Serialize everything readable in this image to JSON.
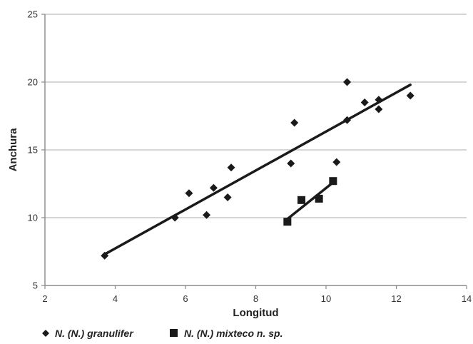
{
  "chart_data": {
    "type": "scatter",
    "xlabel": "Longitud",
    "ylabel": "Anchura",
    "xlim": [
      2,
      14
    ],
    "ylim": [
      5,
      25
    ],
    "xticks": [
      2,
      4,
      6,
      8,
      10,
      12,
      14
    ],
    "yticks": [
      5,
      10,
      15,
      20,
      25
    ],
    "grid": "horizontal",
    "legend_position": "bottom",
    "series": [
      {
        "name": "N. (N.) granulifer",
        "marker": "diamond",
        "color": "#1a1a1a",
        "x": [
          3.7,
          5.7,
          6.1,
          6.6,
          6.8,
          7.2,
          7.3,
          9.0,
          9.1,
          10.3,
          10.6,
          10.6,
          11.1,
          11.5,
          11.5,
          12.4
        ],
        "y": [
          7.2,
          10.0,
          11.8,
          10.2,
          12.2,
          11.5,
          13.7,
          14.0,
          17.0,
          14.1,
          20.0,
          17.2,
          18.5,
          18.0,
          18.7,
          19.0
        ],
        "trendline": {
          "x": [
            3.7,
            12.4
          ],
          "y": [
            7.3,
            19.8
          ]
        }
      },
      {
        "name": "N. (N.) mixteco n. sp.",
        "marker": "square",
        "color": "#1a1a1a",
        "x": [
          8.9,
          9.3,
          9.8,
          10.2
        ],
        "y": [
          9.7,
          11.3,
          11.4,
          12.7
        ],
        "trendline": {
          "x": [
            8.9,
            10.2
          ],
          "y": [
            9.9,
            12.6
          ]
        }
      }
    ]
  }
}
